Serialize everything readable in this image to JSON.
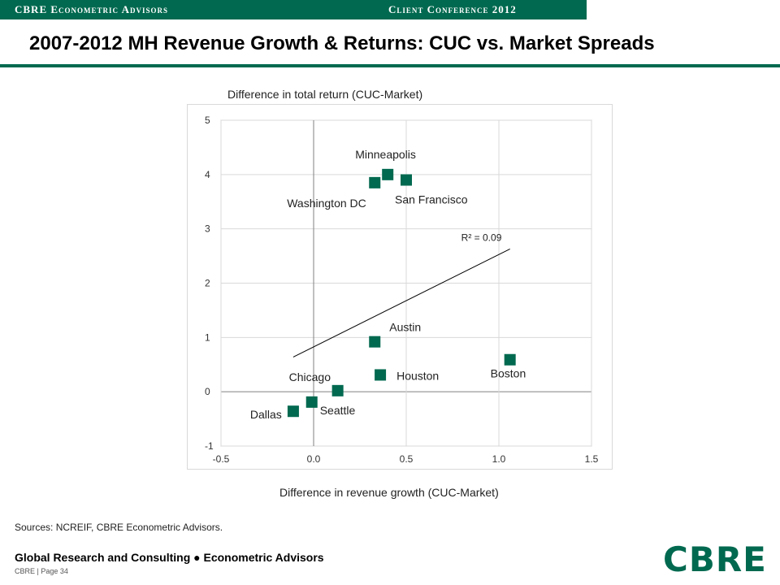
{
  "header": {
    "left": "CBRE Econometric Advisors",
    "right": "Client Conference 2012"
  },
  "title": "2007-2012 MH Revenue Growth & Returns: CUC vs. Market Spreads",
  "sources": "Sources: NCREIF,  CBRE Econometric Advisors.",
  "footer": {
    "line1": "Global Research and Consulting ● Econometric Advisors",
    "line2": "CBRE  |  Page 34",
    "logo": "CBRE"
  },
  "chart_data": {
    "type": "scatter",
    "xlabel": "Difference in revenue growth (CUC-Market)",
    "ylabel": "Difference in total return (CUC-Market)",
    "xlim": [
      -0.5,
      1.5
    ],
    "ylim": [
      -1,
      5
    ],
    "xticks": [
      "-0.5",
      "0.0",
      "0.5",
      "1.0",
      "1.5"
    ],
    "yticks": [
      "-1",
      "0",
      "1",
      "2",
      "3",
      "4",
      "5"
    ],
    "grid": true,
    "marker_color": "#00694f",
    "points": [
      {
        "label": "Minneapolis",
        "x": 0.4,
        "y": 4.0
      },
      {
        "label": "Washington DC",
        "x": 0.33,
        "y": 3.85
      },
      {
        "label": "San Francisco",
        "x": 0.5,
        "y": 3.9
      },
      {
        "label": "Austin",
        "x": 0.33,
        "y": 0.92
      },
      {
        "label": "Houston",
        "x": 0.36,
        "y": 0.31
      },
      {
        "label": "Boston",
        "x": 1.06,
        "y": 0.59
      },
      {
        "label": "Chicago",
        "x": 0.13,
        "y": 0.02
      },
      {
        "label": "Seattle",
        "x": -0.01,
        "y": -0.19
      },
      {
        "label": "Dallas",
        "x": -0.11,
        "y": -0.36
      }
    ],
    "trendline": {
      "x": [
        -0.11,
        1.06
      ],
      "y": [
        0.64,
        2.63
      ]
    },
    "annotation": "R² = 0.09"
  }
}
